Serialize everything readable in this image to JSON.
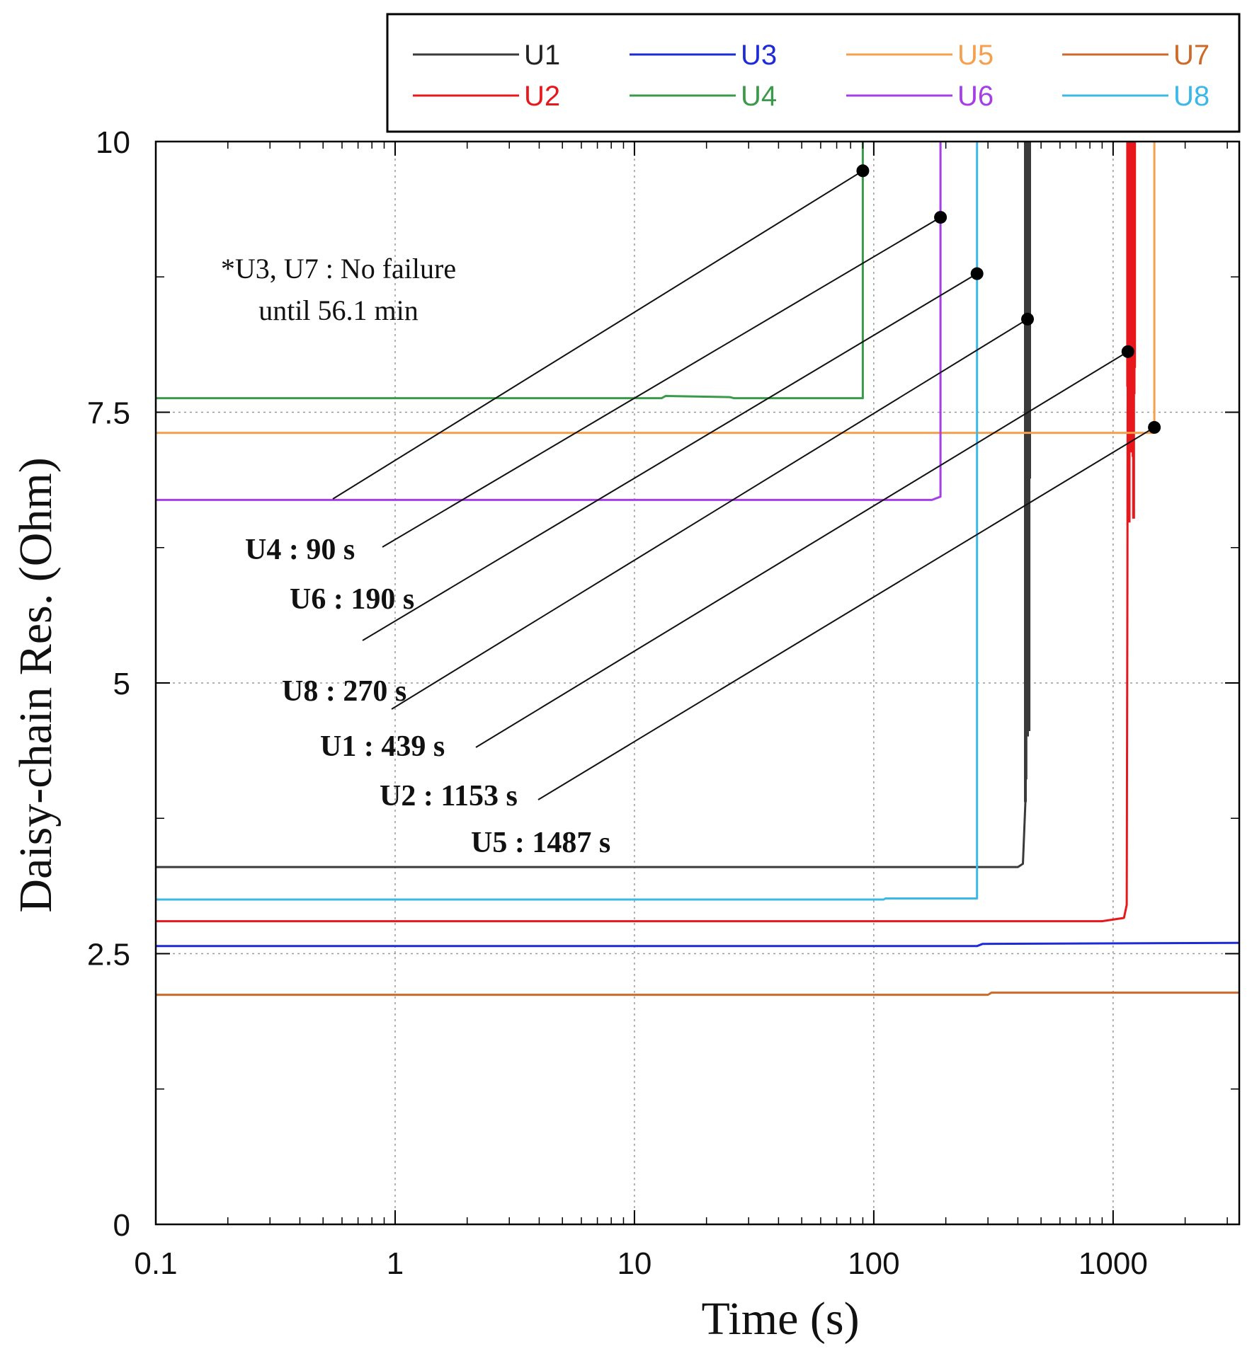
{
  "chart_data": {
    "type": "line",
    "x_scale": "log",
    "xlabel": "Time (s)",
    "ylabel": "Daisy-chain Res. (Ohm)",
    "xlim": [
      0.1,
      3366
    ],
    "ylim": [
      0,
      10
    ],
    "x_ticks": [
      {
        "value": 0.1,
        "label": "0.1"
      },
      {
        "value": 1,
        "label": "1"
      },
      {
        "value": 10,
        "label": "10"
      },
      {
        "value": 100,
        "label": "100"
      },
      {
        "value": 1000,
        "label": "1000"
      }
    ],
    "y_ticks": [
      {
        "value": 0,
        "label": "0"
      },
      {
        "value": 2.5,
        "label": "2.5"
      },
      {
        "value": 5,
        "label": "5"
      },
      {
        "value": 7.5,
        "label": "7.5"
      },
      {
        "value": 10,
        "label": "10"
      }
    ],
    "grid": true,
    "legend_position": "top, above plot",
    "series": [
      {
        "name": "U1",
        "color": "#3a3a3a",
        "label_color": "#222222",
        "points": [
          [
            0.1,
            3.3
          ],
          [
            400,
            3.3
          ],
          [
            420,
            3.33
          ],
          [
            430,
            3.9
          ],
          [
            436,
            7.0
          ],
          [
            439,
            10
          ]
        ],
        "burst_x": [
          430,
          448
        ],
        "burst_y": [
          3.9,
          10
        ]
      },
      {
        "name": "U2",
        "color": "#e8171b",
        "label_color": "#e8171b",
        "points": [
          [
            0.1,
            2.8
          ],
          [
            900,
            2.8
          ],
          [
            1110,
            2.83
          ],
          [
            1140,
            2.95
          ],
          [
            1148,
            6.0
          ],
          [
            1153,
            10
          ]
        ],
        "burst_x": [
          1150,
          1230
        ],
        "burst_y": [
          6.0,
          10
        ]
      },
      {
        "name": "U3",
        "color": "#1c2ad8",
        "label_color": "#1c2ad8",
        "points": [
          [
            0.1,
            2.57
          ],
          [
            270,
            2.57
          ],
          [
            285,
            2.59
          ],
          [
            3366,
            2.6
          ]
        ]
      },
      {
        "name": "U4",
        "color": "#3a9a4a",
        "label_color": "#3a9a4a",
        "points": [
          [
            0.1,
            7.63
          ],
          [
            13,
            7.63
          ],
          [
            13.5,
            7.65
          ],
          [
            25,
            7.64
          ],
          [
            26,
            7.63
          ],
          [
            90,
            7.63
          ],
          [
            90,
            10
          ]
        ]
      },
      {
        "name": "U5",
        "color": "#f5a04e",
        "label_color": "#f5a04e",
        "points": [
          [
            0.1,
            7.31
          ],
          [
            1487,
            7.31
          ],
          [
            1487,
            10
          ]
        ]
      },
      {
        "name": "U6",
        "color": "#a53ee6",
        "label_color": "#a53ee6",
        "points": [
          [
            0.1,
            6.69
          ],
          [
            175,
            6.69
          ],
          [
            190,
            6.72
          ],
          [
            190,
            10
          ]
        ]
      },
      {
        "name": "U7",
        "color": "#cc6a2a",
        "label_color": "#cc6a2a",
        "points": [
          [
            0.1,
            2.12
          ],
          [
            300,
            2.12
          ],
          [
            310,
            2.14
          ],
          [
            3366,
            2.14
          ]
        ]
      },
      {
        "name": "U8",
        "color": "#3cb8e8",
        "label_color": "#3cb8e8",
        "points": [
          [
            0.1,
            3.0
          ],
          [
            110,
            3.0
          ],
          [
            112,
            3.01
          ],
          [
            270,
            3.01
          ],
          [
            270,
            10
          ]
        ]
      }
    ],
    "failure_markers": [
      {
        "unit": "U4",
        "label": "U4 : 90 s",
        "x": 90,
        "y": 9.73
      },
      {
        "unit": "U6",
        "label": "U6 : 190 s",
        "x": 190,
        "y": 9.3
      },
      {
        "unit": "U8",
        "label": "U8 : 270 s",
        "x": 270,
        "y": 8.78
      },
      {
        "unit": "U1",
        "label": "U1 : 439 s",
        "x": 439,
        "y": 8.36
      },
      {
        "unit": "U2",
        "label": "U2 : 1153 s",
        "x": 1153,
        "y": 8.06
      },
      {
        "unit": "U5",
        "label": "U5 : 1487 s",
        "x": 1487,
        "y": 7.36
      }
    ],
    "note_lines": [
      "*U3, U7 : No failure",
      "until 56.1 min"
    ]
  }
}
